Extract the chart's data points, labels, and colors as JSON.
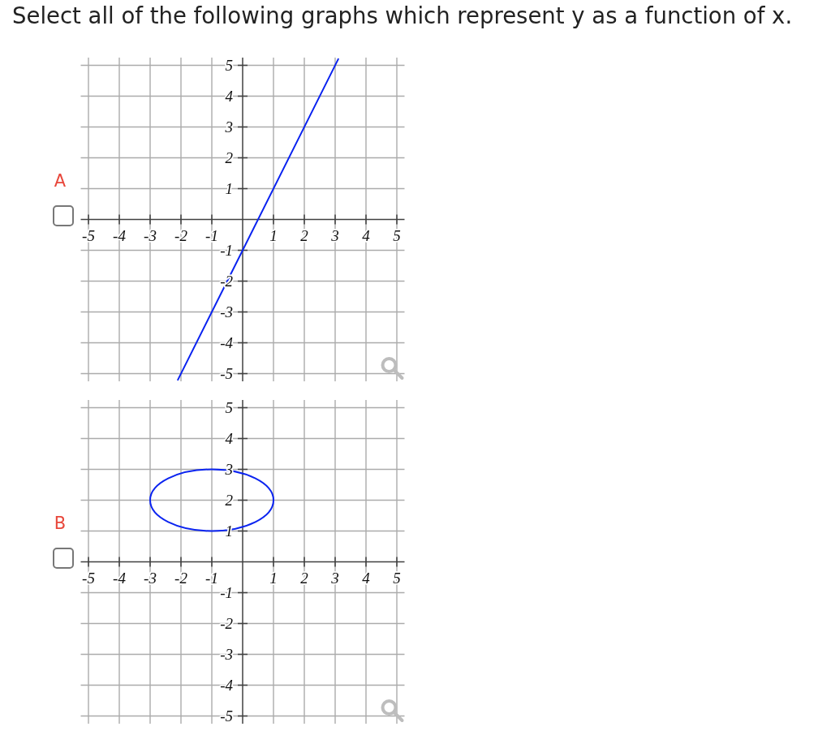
{
  "chart_data": [
    {
      "type": "line",
      "title": "Select all of the following graphs which represent y as a function of x.",
      "annotations": [
        "A"
      ],
      "series": [
        {
          "color": "#0b24f0",
          "x": [
            -2.1,
            0,
            3.1
          ],
          "values": [
            -5.2,
            -1,
            5.2
          ]
        }
      ],
      "xlim": [
        -5.25,
        5.25
      ],
      "ylim": [
        -5.25,
        5.25
      ],
      "xticks": [
        -5,
        -4,
        -3,
        -2,
        -1,
        1,
        2,
        3,
        4,
        5
      ],
      "yticks": [
        -5,
        -4,
        -3,
        -2,
        -1,
        1,
        2,
        3,
        4,
        5
      ],
      "grid": true
    },
    {
      "type": "line",
      "annotations": [
        "B"
      ],
      "xlim": [
        -5.25,
        5.25
      ],
      "ylim": [
        -5.25,
        5.25
      ],
      "xticks": [
        -5,
        -4,
        -3,
        -2,
        -1,
        1,
        2,
        3,
        4,
        5
      ],
      "yticks": [
        -5,
        -4,
        -3,
        -2,
        -1,
        1,
        2,
        3,
        4,
        5
      ],
      "grid": true
    }
  ]
}
